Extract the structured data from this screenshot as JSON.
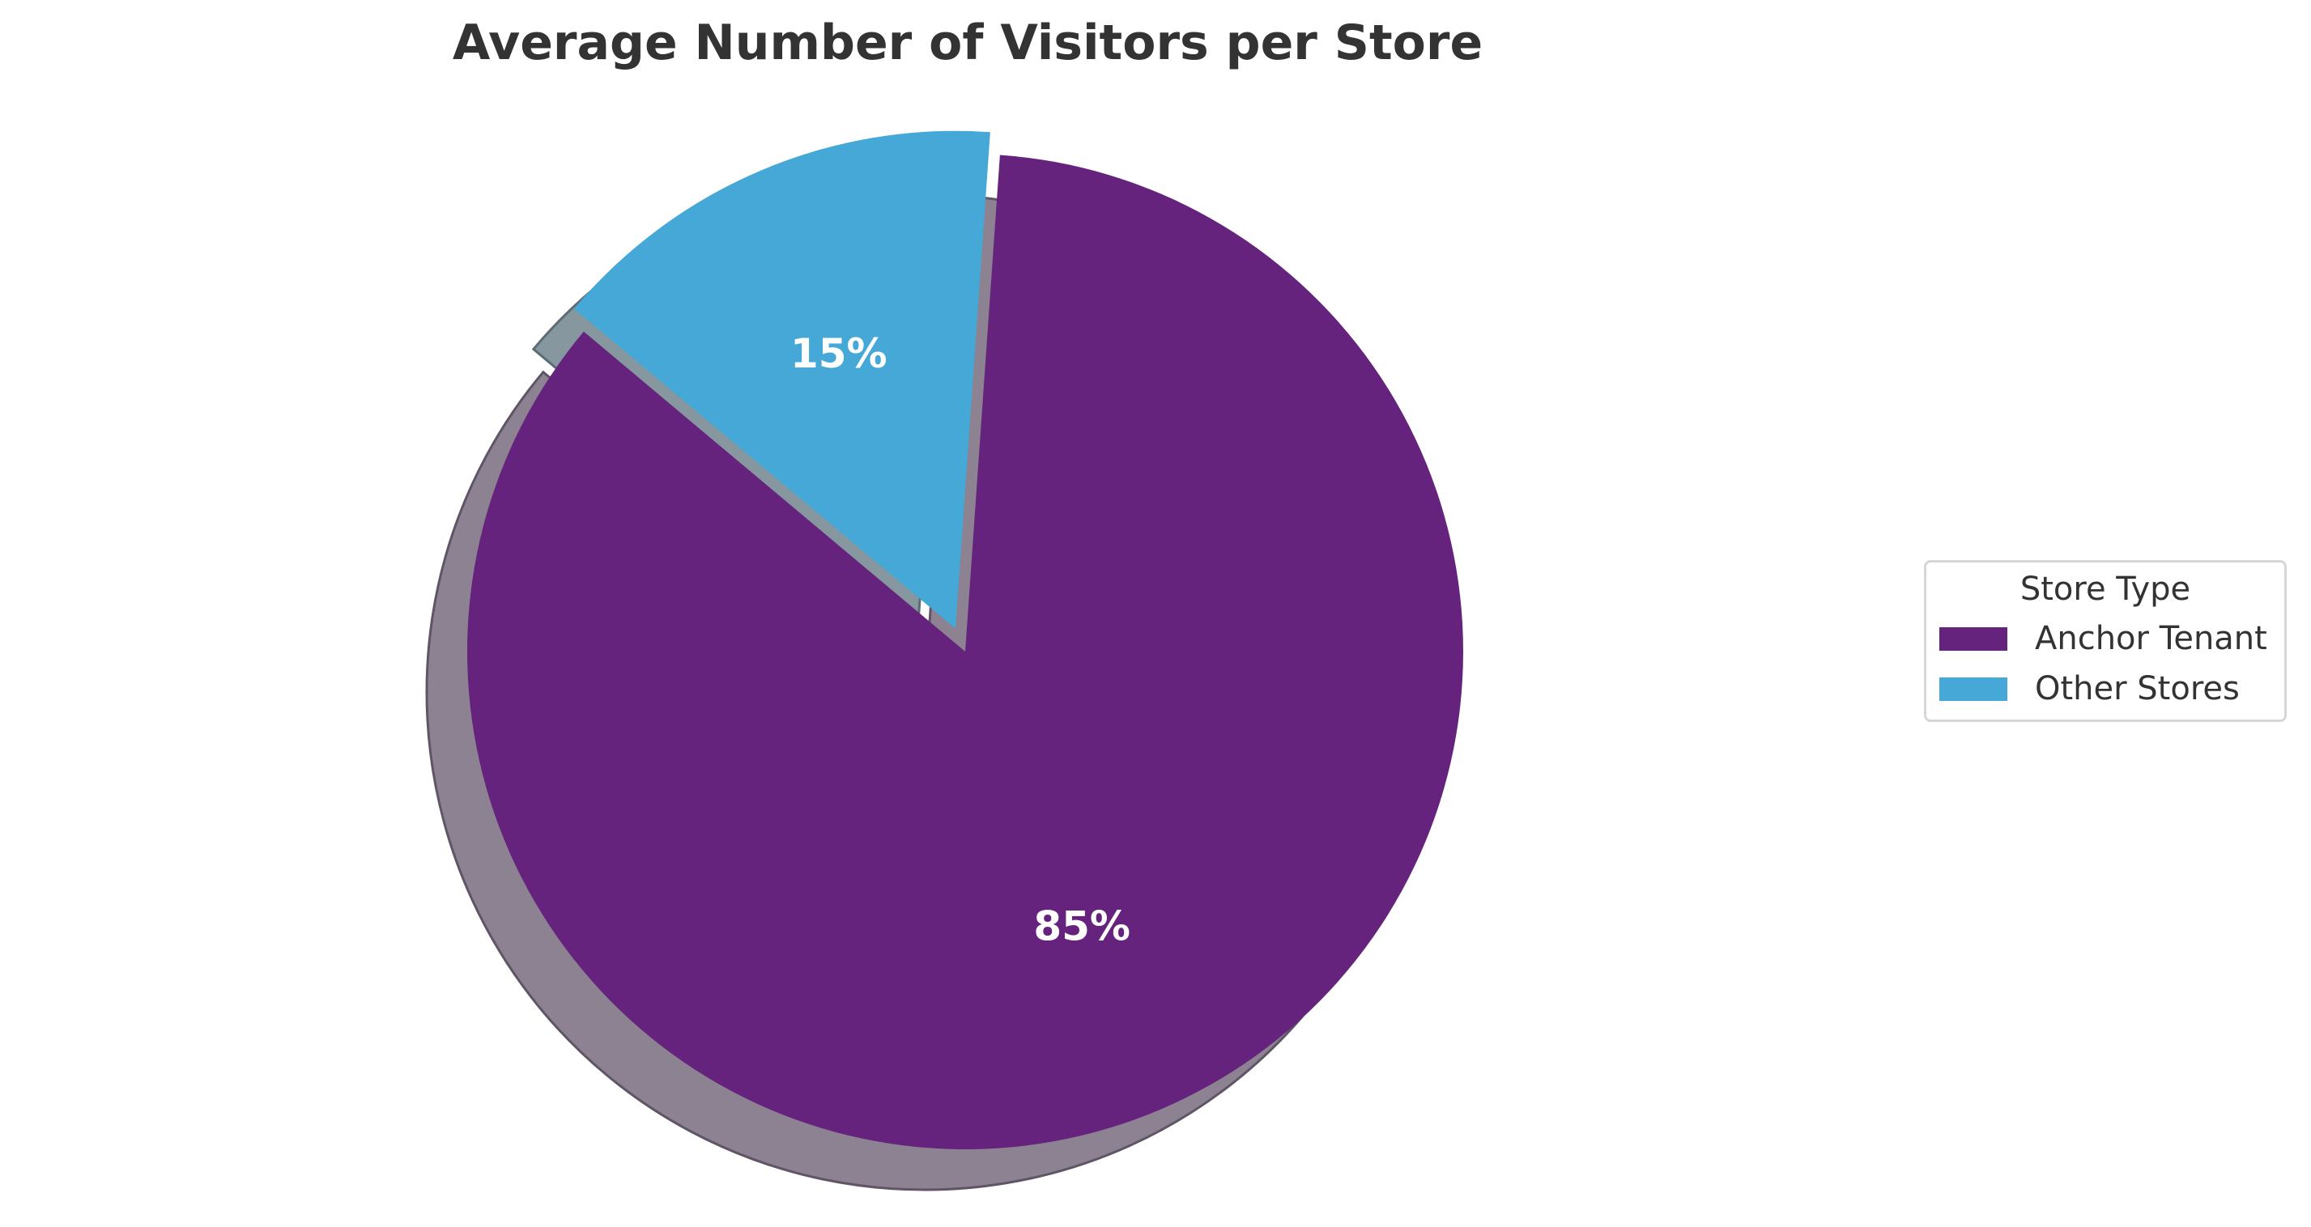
{
  "chart": {
    "title": "Average Number of Visitors per Store"
  },
  "legend": {
    "title": "Store Type",
    "items": [
      {
        "label": "Anchor Tenant",
        "color": "#65237d"
      },
      {
        "label": "Other Stores",
        "color": "#45a8d6"
      }
    ]
  },
  "slices": [
    {
      "label": "Anchor Tenant",
      "pct_label": "85%",
      "color": "#65237d",
      "shadow": "#8c8291",
      "shadow_edge": "#5f5566"
    },
    {
      "label": "Other Stores",
      "pct_label": "15%",
      "color": "#45a8d6",
      "shadow": "#86979f",
      "shadow_edge": "#5d6c72"
    }
  ],
  "chart_data": {
    "type": "pie",
    "title": "Average Number of Visitors per Store",
    "categories": [
      "Anchor Tenant",
      "Other Stores"
    ],
    "values": [
      85,
      15
    ],
    "value_labels": [
      "85%",
      "15%"
    ],
    "colors": [
      "#65237d",
      "#45a8d6"
    ],
    "explode": [
      0,
      0.05
    ],
    "shadow": true,
    "start_angle_deg": 140,
    "legend": {
      "title": "Store Type",
      "entries": [
        "Anchor Tenant",
        "Other Stores"
      ],
      "position": "center right"
    }
  }
}
